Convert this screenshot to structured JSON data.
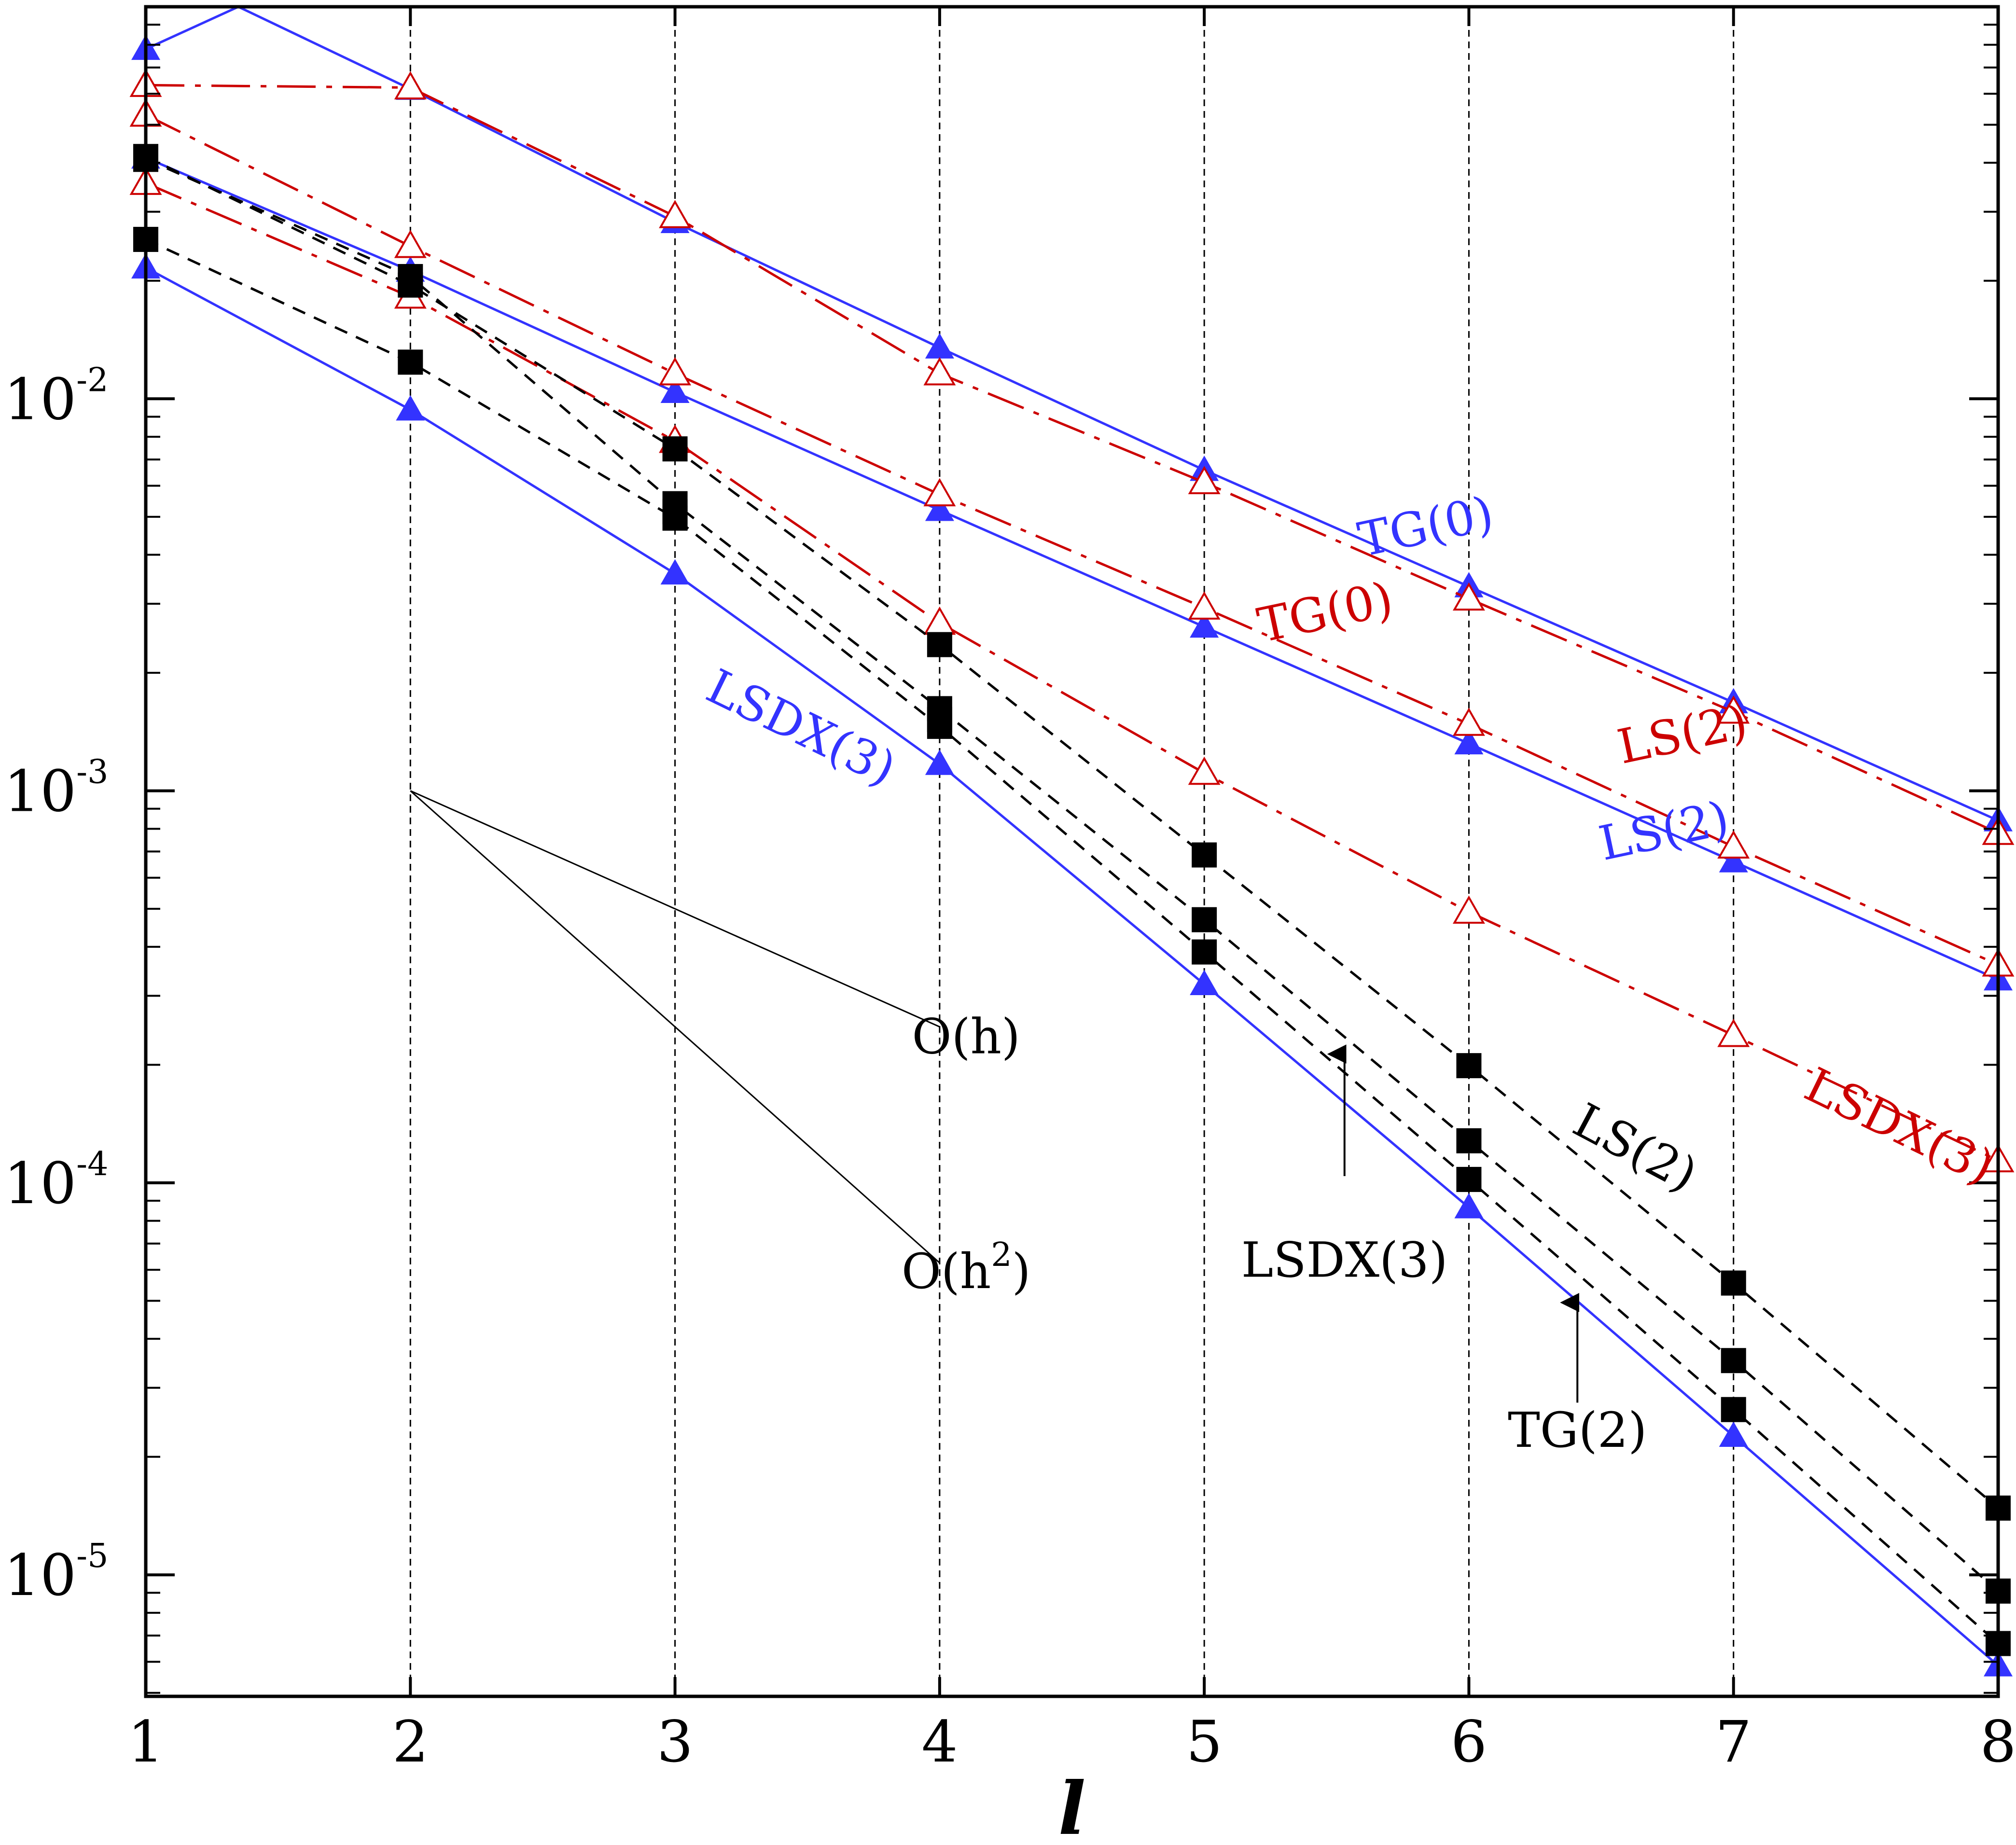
{
  "chart_data": {
    "type": "line",
    "title": "",
    "xlabel": "l",
    "ylabel": "",
    "xlim": [
      1,
      8
    ],
    "ylim_log10": [
      -5.31,
      -1.0
    ],
    "x_ticks": [
      1,
      2,
      3,
      4,
      5,
      6,
      7,
      8
    ],
    "x_tick_labels": [
      "1",
      "2",
      "3",
      "4",
      "5",
      "6",
      "7",
      "8"
    ],
    "y_tick_labels": [
      {
        "base": "10",
        "exp": "-2",
        "value": 0.01
      },
      {
        "base": "10",
        "exp": "-3",
        "value": 0.001
      },
      {
        "base": "10",
        "exp": "-4",
        "value": 0.0001
      },
      {
        "base": "10",
        "exp": "-5",
        "value": 1e-05
      }
    ],
    "vertical_grid": true,
    "colors": {
      "blue": "#3333ff",
      "red": "#cc0000",
      "black": "#000000"
    },
    "series": [
      {
        "name": "TG(0) blue",
        "color": "#3333ff",
        "style": "solid",
        "marker": "filled-triangle",
        "x": [
          1.0,
          1.35,
          2,
          3,
          4,
          5,
          6,
          7,
          8
        ],
        "y": [
          0.078,
          0.1,
          0.0617,
          0.0282,
          0.0135,
          0.00658,
          0.00332,
          0.00168,
          0.00084
        ]
      },
      {
        "name": "LS(2) blue",
        "color": "#3333ff",
        "style": "solid",
        "marker": "filled-triangle",
        "x": [
          1,
          2,
          3,
          4,
          5,
          6,
          7,
          8
        ],
        "y": [
          0.0412,
          0.0212,
          0.0104,
          0.0052,
          0.00262,
          0.00132,
          0.00066,
          0.00033
        ]
      },
      {
        "name": "LSDX(3) blue",
        "color": "#3333ff",
        "style": "solid",
        "marker": "filled-triangle",
        "x": [
          1,
          2,
          3,
          4,
          5,
          6,
          7,
          8
        ],
        "y": [
          0.0216,
          0.00938,
          0.00358,
          0.00117,
          0.000321,
          8.65e-05,
          2.26e-05,
          5.87e-06
        ]
      },
      {
        "name": "TG(0) red",
        "color": "#cc0000",
        "style": "dashdot",
        "marker": "open-triangle",
        "x": [
          1,
          2,
          3,
          4,
          5,
          6,
          7,
          8
        ],
        "y": [
          0.0631,
          0.0622,
          0.0292,
          0.0116,
          0.00612,
          0.00309,
          0.00159,
          0.00078
        ]
      },
      {
        "name": "LS(2) red",
        "color": "#cc0000",
        "style": "dashdot",
        "marker": "open-triangle",
        "x": [
          1,
          2,
          3,
          4,
          5,
          6,
          7,
          8
        ],
        "y": [
          0.053,
          0.0245,
          0.0116,
          0.0057,
          0.00293,
          0.00148,
          0.00072,
          0.00036
        ]
      },
      {
        "name": "LSDX(3) red",
        "color": "#cc0000",
        "style": "dashdot",
        "marker": "open-triangle",
        "x": [
          1,
          2,
          3,
          4,
          5,
          6,
          7,
          8
        ],
        "y": [
          0.0355,
          0.0182,
          0.0078,
          0.00268,
          0.00111,
          0.000491,
          0.000238,
          0.000114
        ]
      },
      {
        "name": "LSDX(3) black",
        "color": "#000000",
        "style": "dashed",
        "marker": "filled-square",
        "x": [
          1,
          2,
          3,
          4,
          5,
          6,
          7,
          8
        ],
        "y": [
          0.0415,
          0.0195,
          0.00745,
          0.00236,
          0.000686,
          0.000199,
          5.55e-05,
          1.48e-05
        ]
      },
      {
        "name": "LS(2) black",
        "color": "#000000",
        "style": "dashed",
        "marker": "filled-square",
        "x": [
          1,
          2,
          3,
          4,
          5,
          6,
          7,
          8
        ],
        "y": [
          0.0409,
          0.0205,
          0.0054,
          0.00162,
          0.000469,
          0.000128,
          3.52e-05,
          9.09e-06
        ]
      },
      {
        "name": "TG(2) black",
        "color": "#000000",
        "style": "dashed",
        "marker": "filled-square",
        "x": [
          1,
          2,
          3,
          4,
          5,
          6,
          7,
          8
        ],
        "y": [
          0.0255,
          0.0124,
          0.00496,
          0.00146,
          0.000388,
          0.000102,
          2.64e-05,
          6.68e-06
        ]
      },
      {
        "name": "extra black squares",
        "color": "#000000",
        "style": "none",
        "marker": "filled-square",
        "x": [
          1,
          3,
          4
        ],
        "y": [
          0.0408,
          0.00515,
          0.00152
        ]
      }
    ],
    "reference_lines": [
      {
        "label": "O(h)",
        "x": [
          2,
          4
        ],
        "y": [
          0.001,
          0.00025
        ]
      },
      {
        "label": "O(h2)",
        "x": [
          2,
          4
        ],
        "y": [
          0.001,
          6.25e-05
        ]
      }
    ],
    "series_labels": [
      {
        "text": "TG(0)",
        "color": "#3333ff",
        "x": 5.85,
        "y": 0.0043,
        "angle": -12
      },
      {
        "text": "TG(0)",
        "color": "#cc0000",
        "x": 5.47,
        "y": 0.0026,
        "angle": -12
      },
      {
        "text": "LS(2)",
        "color": "#cc0000",
        "x": 6.82,
        "y": 0.00127,
        "angle": -12
      },
      {
        "text": "LS(2)",
        "color": "#3333ff",
        "x": 6.75,
        "y": 0.00072,
        "angle": -12
      },
      {
        "text": "LSDX(3)",
        "color": "#3333ff",
        "x": 3.45,
        "y": 0.00133,
        "angle": 26
      },
      {
        "text": "LSDX(3)",
        "color": "#cc0000",
        "x": 7.6,
        "y": 0.000128,
        "angle": 26
      },
      {
        "text": "LS(2)",
        "color": "#000000",
        "x": 6.6,
        "y": 0.000113,
        "angle": 28
      }
    ],
    "annotations": [
      {
        "text": "O(h)",
        "x": 4.1,
        "y": 0.000214
      },
      {
        "text": "O(h",
        "sup": "2",
        "close": ")",
        "x": 4.1,
        "y": 5.39e-05
      },
      {
        "text": "LSDX(3)",
        "x": 5.53,
        "y": 5.76e-05,
        "arrow_from": [
          5.53,
          0.000104
        ],
        "arrow_to": [
          5.53,
          0.000213
        ]
      },
      {
        "text": "TG(2)",
        "x": 6.41,
        "y": 2.12e-05,
        "arrow_from": [
          6.41,
          2.75e-05
        ],
        "arrow_to": [
          6.41,
          4.95e-05
        ]
      }
    ]
  }
}
